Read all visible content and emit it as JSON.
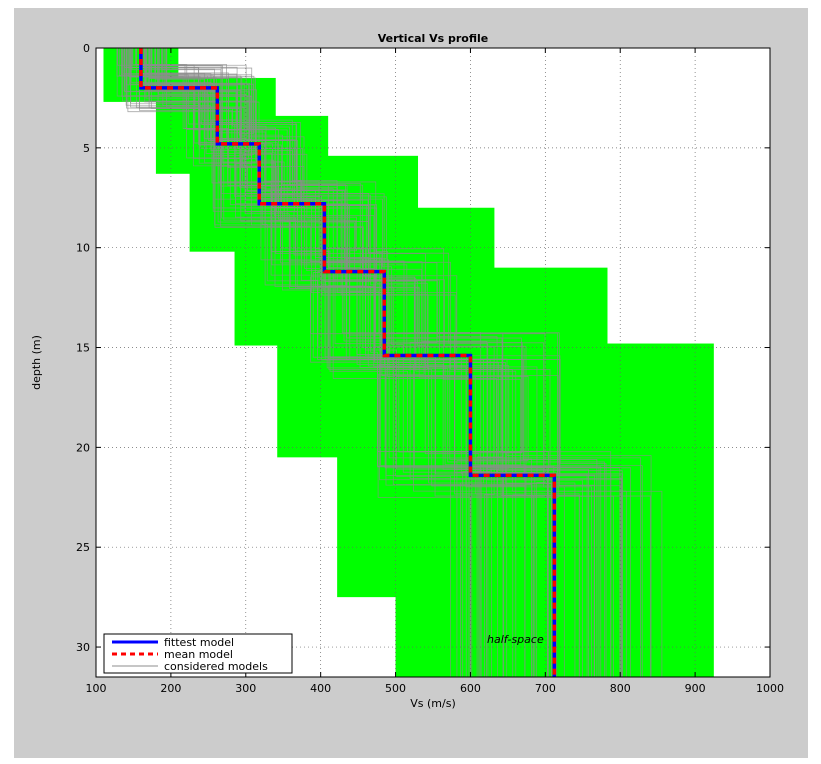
{
  "chart_data": {
    "type": "line",
    "title": "Vertical Vs profile",
    "xlabel": "Vs (m/s)",
    "ylabel": "depth (m)",
    "xlim": [
      100,
      1000
    ],
    "ylim": [
      0,
      31.5
    ],
    "y_reversed": true,
    "grid": true,
    "legend_position": "bottom-left",
    "xticks": [
      100,
      200,
      300,
      400,
      500,
      600,
      700,
      800,
      900,
      1000
    ],
    "yticks": [
      0,
      5,
      10,
      15,
      20,
      25,
      30
    ],
    "search_space": [
      {
        "vmin": 110,
        "vmax": 210,
        "dmin": 0,
        "dmax": 2.7
      },
      {
        "vmin": 180,
        "vmax": 340,
        "dmin": 1.5,
        "dmax": 6.3
      },
      {
        "vmin": 225,
        "vmax": 410,
        "dmin": 3.4,
        "dmax": 10.2
      },
      {
        "vmin": 285,
        "vmax": 530,
        "dmin": 5.4,
        "dmax": 14.9
      },
      {
        "vmin": 342,
        "vmax": 632,
        "dmin": 8,
        "dmax": 20.5
      },
      {
        "vmin": 422,
        "vmax": 783,
        "dmin": 11,
        "dmax": 27.5
      },
      {
        "vmin": 500,
        "vmax": 925,
        "dmin": 14.8,
        "dmax": 31.5
      }
    ],
    "series": [
      {
        "name": "fittest model",
        "color": "#0000ff",
        "style": "solid",
        "vs": [
          160,
          262,
          318,
          405,
          485,
          600,
          712
        ],
        "bottom_depths": [
          2,
          4.8,
          7.8,
          11.2,
          15.4,
          21.4,
          31.5
        ]
      },
      {
        "name": "mean model",
        "color": "#ff0000",
        "style": "dashed",
        "vs": [
          160,
          262,
          318,
          405,
          485,
          600,
          712
        ],
        "bottom_depths": [
          2,
          4.8,
          7.8,
          11.2,
          15.4,
          21.4,
          31.5
        ]
      },
      {
        "name": "considered models",
        "color": "#8c8c8c",
        "style": "solid"
      }
    ],
    "search_space_color": "#00ff00",
    "annotation": {
      "text": "half-space",
      "x": 660,
      "y": 29.8
    }
  }
}
